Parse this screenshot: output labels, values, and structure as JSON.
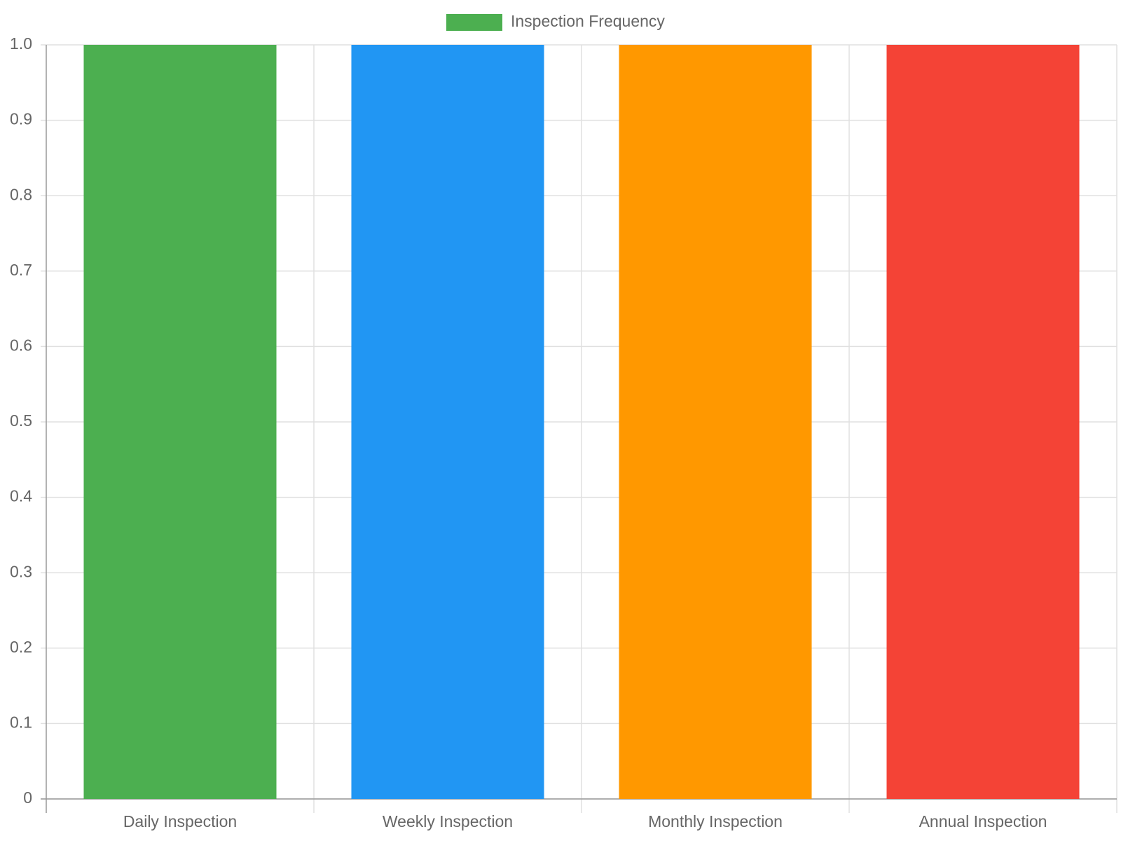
{
  "chart_data": {
    "type": "bar",
    "categories": [
      "Daily Inspection",
      "Weekly Inspection",
      "Monthly Inspection",
      "Annual Inspection"
    ],
    "series": [
      {
        "name": "Inspection Frequency",
        "colors": [
          "#4caf50",
          "#2196f3",
          "#ff9800",
          "#f44336"
        ],
        "values": [
          1,
          1,
          1,
          1
        ]
      }
    ],
    "ylim": [
      0,
      1
    ],
    "yticks": [
      0,
      0.1,
      0.2,
      0.3,
      0.4,
      0.5,
      0.6,
      0.7,
      0.8,
      0.9,
      {
        "value": 1,
        "label": "1.0"
      }
    ],
    "grid": true,
    "legend": "top"
  }
}
